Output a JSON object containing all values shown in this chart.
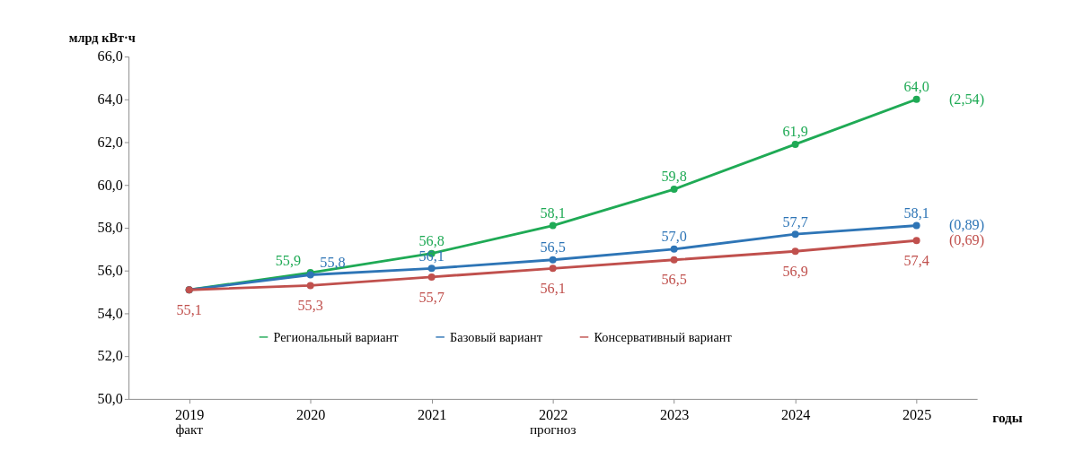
{
  "chart_data": {
    "type": "line",
    "ylabel": "млрд кВт·ч",
    "xlabel": "годы",
    "categories": [
      "2019",
      "2020",
      "2021",
      "2022",
      "2023",
      "2024",
      "2025"
    ],
    "ylim": [
      50,
      66
    ],
    "yticks": [
      {
        "value": 50,
        "label": "50,0"
      },
      {
        "value": 52,
        "label": "52,0"
      },
      {
        "value": 54,
        "label": "54,0"
      },
      {
        "value": 56,
        "label": "56,0"
      },
      {
        "value": 58,
        "label": "58,0"
      },
      {
        "value": 60,
        "label": "60,0"
      },
      {
        "value": 62,
        "label": "62,0"
      },
      {
        "value": 64,
        "label": "64,0"
      },
      {
        "value": 66,
        "label": "66,0"
      }
    ],
    "series": [
      {
        "name": "Региональный вариант",
        "color": "#1faa55",
        "values": [
          55.1,
          55.9,
          56.8,
          58.1,
          59.8,
          61.9,
          64.0
        ],
        "value_labels": [
          null,
          "55,9",
          "56,8",
          "58,1",
          "59,8",
          "61,9",
          "64,0"
        ]
      },
      {
        "name": "Базовый вариант",
        "color": "#2e75b6",
        "values": [
          55.1,
          55.8,
          56.1,
          56.5,
          57.0,
          57.7,
          58.1
        ],
        "value_labels": [
          null,
          "55,8",
          "56,1",
          "56,5",
          "57,0",
          "57,7",
          "58,1"
        ]
      },
      {
        "name": "Консервативный вариант",
        "color": "#c0504d",
        "values": [
          55.1,
          55.3,
          55.7,
          56.1,
          56.5,
          56.9,
          57.4
        ],
        "value_labels": [
          "55,1",
          "55,3",
          "55,7",
          "56,1",
          "56,5",
          "56,9",
          "57,4"
        ]
      }
    ],
    "annotations": [
      {
        "text": "(2,54)",
        "x": "2025",
        "y": 64.0
      },
      {
        "text": "(0,89)",
        "x": "2025",
        "y": 58.1
      },
      {
        "text": "(0,69)",
        "x": "2025",
        "y": 57.4
      },
      "факт",
      "прогноз"
    ],
    "marker": "circle",
    "line_style": "solid",
    "grid": false,
    "legend": "bottom"
  }
}
